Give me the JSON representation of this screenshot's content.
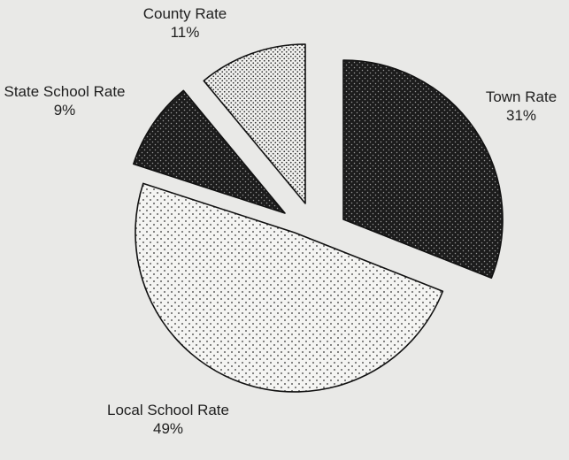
{
  "chart_data": {
    "type": "pie",
    "title": "",
    "slices": [
      {
        "name": "Town Rate",
        "value": 31,
        "value_label": "31%",
        "pattern": "dark-dots"
      },
      {
        "name": "Local School Rate",
        "value": 49,
        "value_label": "49%",
        "pattern": "light-sparse-dots"
      },
      {
        "name": "State School Rate",
        "value": 9,
        "value_label": "9%",
        "pattern": "dark-dots"
      },
      {
        "name": "County Rate",
        "value": 11,
        "value_label": "11%",
        "pattern": "light-dense-dots"
      }
    ],
    "exploded": true,
    "start_angle": "12 o'clock",
    "direction": "clockwise"
  }
}
